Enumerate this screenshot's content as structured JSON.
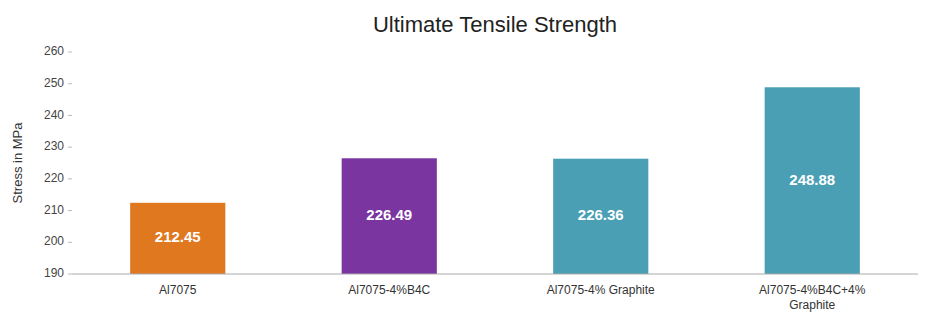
{
  "chart_data": {
    "type": "bar",
    "title": "Ultimate Tensile Strength",
    "ylabel": "Stress in MPa",
    "categories": [
      "Al7075",
      "Al7075-4%B4C",
      "Al7075-4% Graphite",
      "Al7075-4%B4C+4%\nGraphite"
    ],
    "values": [
      212.45,
      226.49,
      226.36,
      248.88
    ],
    "colors": [
      "#E07820",
      "#7B35A0",
      "#4A9FB5",
      "#4A9FB5"
    ],
    "ylim": [
      190,
      260
    ],
    "yticks": [
      190,
      200,
      210,
      220,
      230,
      240,
      250,
      260
    ],
    "grid": false,
    "data_labels": true
  }
}
